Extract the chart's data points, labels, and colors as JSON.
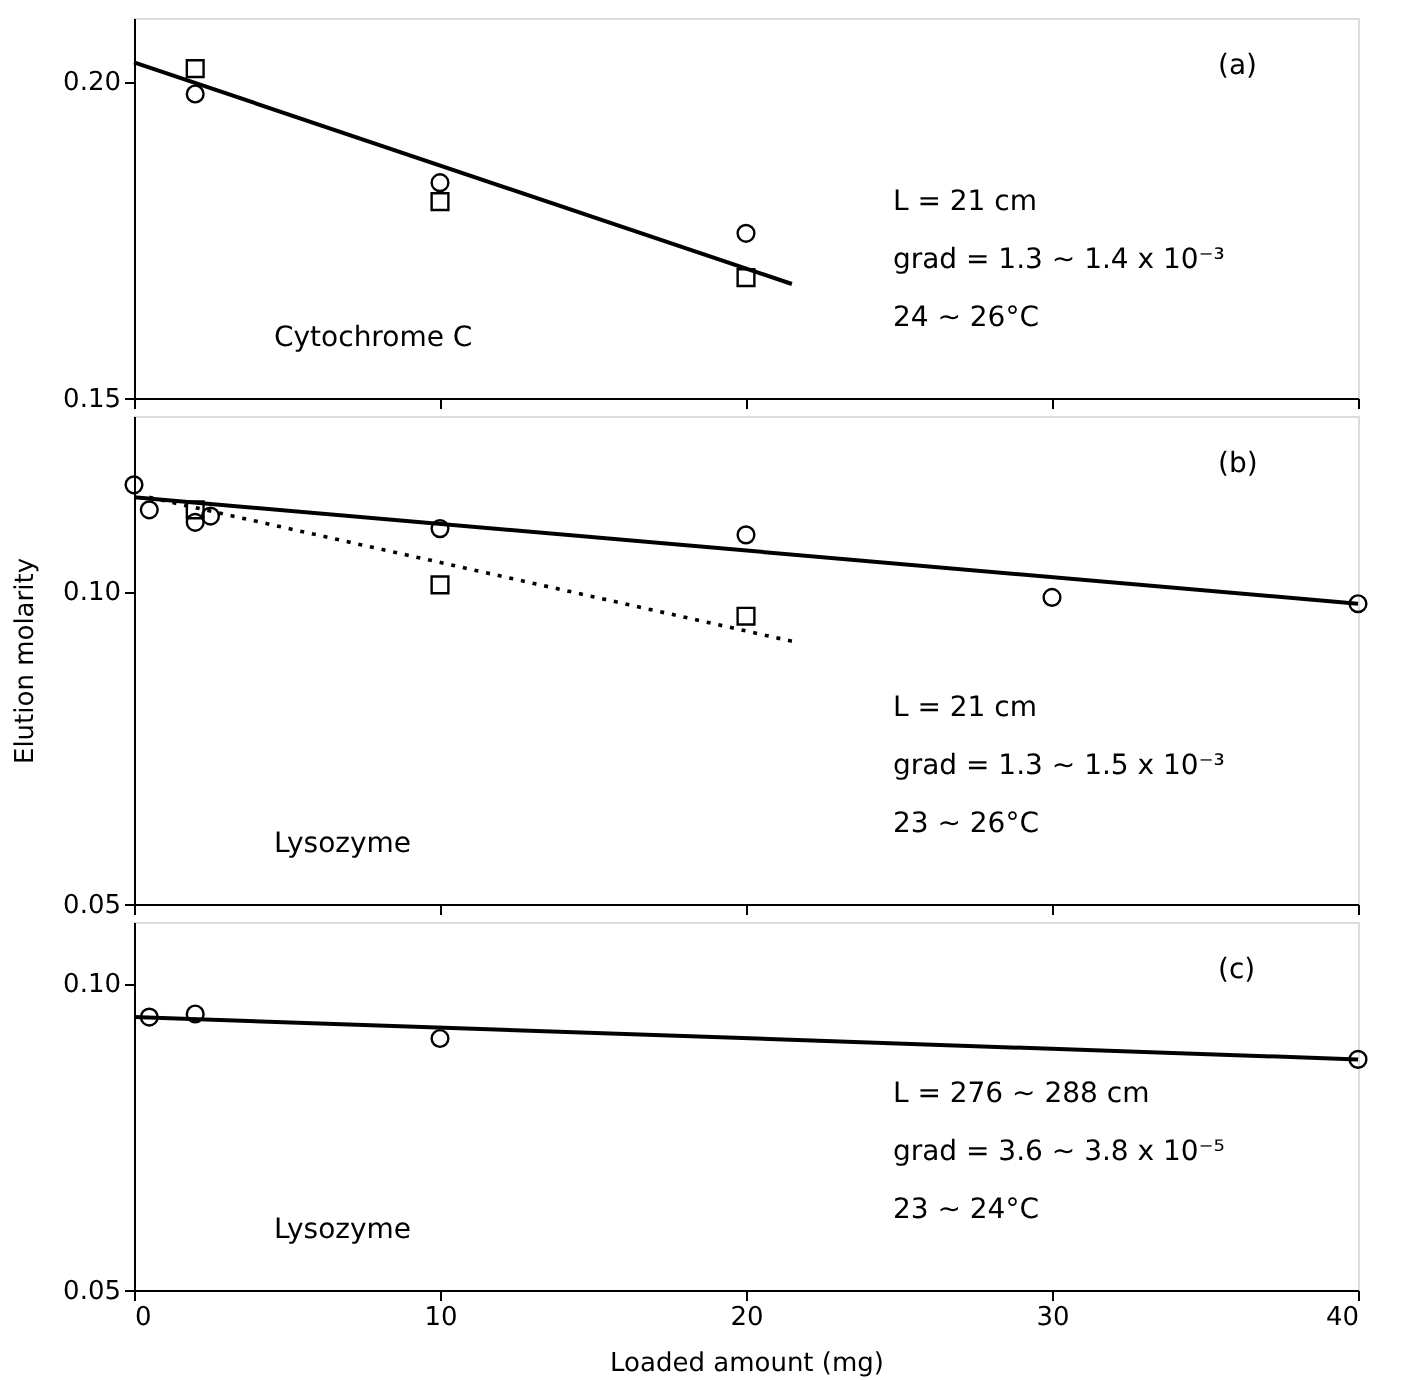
{
  "chart_data": [
    {
      "type": "scatter",
      "xlim": [
        0,
        40
      ],
      "xticks": [
        0,
        10,
        20,
        30,
        40
      ],
      "ylim": [
        0.15,
        0.21
      ],
      "yticks": [
        {
          "value": 0.15,
          "label": "0.15"
        },
        {
          "value": 0.2,
          "label": "0.20"
        }
      ],
      "tick_labels": "y",
      "grid": false,
      "annotations": [
        "(a)",
        "L = 21 cm",
        "grad = 1.3 ~ 1.4 x 10⁻³",
        "24 ~ 26°C",
        "Cytochrome C"
      ],
      "series": [
        {
          "marker": "circle",
          "color": "#000000",
          "x": [
            2,
            10,
            20
          ],
          "values": [
            0.198,
            0.184,
            0.176
          ]
        },
        {
          "marker": "square",
          "color": "#000000",
          "x": [
            2,
            10,
            20
          ],
          "values": [
            0.202,
            0.181,
            0.169
          ]
        },
        {
          "type": "line",
          "line_style": "solid",
          "color": "#000000",
          "x": [
            0,
            21.5
          ],
          "values": [
            0.203,
            0.168
          ]
        }
      ]
    },
    {
      "type": "scatter",
      "xlim": [
        0,
        40
      ],
      "xticks": [
        0,
        10,
        20,
        30,
        40
      ],
      "ylim": [
        0.05,
        0.128
      ],
      "yticks": [
        {
          "value": 0.05,
          "label": "0.05"
        },
        {
          "value": 0.1,
          "label": "0.10"
        }
      ],
      "tick_labels": "y",
      "grid": false,
      "ylabel": "Elution molarity",
      "annotations": [
        "(b)",
        "L = 21 cm",
        "grad = 1.3 ~ 1.5 x 10⁻³",
        "23 ~ 26°C",
        "Lysozyme"
      ],
      "series": [
        {
          "marker": "circle",
          "color": "#000000",
          "x": [
            0,
            0.5,
            2,
            2.5,
            10,
            20,
            30,
            40
          ],
          "values": [
            0.117,
            0.113,
            0.111,
            0.112,
            0.11,
            0.109,
            0.099,
            0.098
          ]
        },
        {
          "marker": "square",
          "color": "#000000",
          "x": [
            2,
            10,
            20
          ],
          "values": [
            0.113,
            0.101,
            0.096
          ]
        },
        {
          "type": "line",
          "line_style": "solid",
          "color": "#000000",
          "x": [
            0,
            40
          ],
          "values": [
            0.115,
            0.098
          ]
        },
        {
          "type": "line",
          "line_style": "dotted",
          "color": "#000000",
          "x": [
            0.5,
            21.5
          ],
          "values": [
            0.115,
            0.092
          ]
        }
      ]
    },
    {
      "type": "scatter",
      "xlim": [
        0,
        40
      ],
      "xticks": [
        0,
        10,
        20,
        30,
        40
      ],
      "ylim": [
        0.05,
        0.11
      ],
      "yticks": [
        {
          "value": 0.05,
          "label": "0.05"
        },
        {
          "value": 0.1,
          "label": "0.10"
        }
      ],
      "grid": false,
      "xlabel": "Loaded amount (mg)",
      "annotations": [
        "(c)",
        "L = 276 ~ 288 cm",
        "grad = 3.6 ~ 3.8 x 10⁻⁵",
        "23 ~ 24°C",
        "Lysozyme"
      ],
      "series": [
        {
          "marker": "circle",
          "color": "#000000",
          "x": [
            0.5,
            2,
            10,
            40
          ],
          "values": [
            0.0945,
            0.095,
            0.091,
            0.0876
          ]
        },
        {
          "type": "line",
          "line_style": "solid",
          "color": "#000000",
          "x": [
            0,
            40
          ],
          "values": [
            0.0945,
            0.0876
          ]
        }
      ]
    }
  ]
}
